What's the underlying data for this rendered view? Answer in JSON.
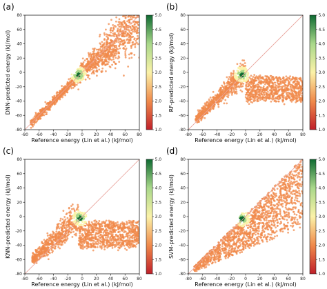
{
  "chart_data": [
    {
      "panel_label": "(a)",
      "type": "scatter",
      "xlabel": "Reference energy (Lin et al.) (kJ/mol)",
      "ylabel": "DNN-predicted energy (kJ/mol)",
      "xlim": [
        -80,
        80
      ],
      "ylim": [
        -80,
        80
      ],
      "xticks": [
        "-80",
        "-60",
        "-40",
        "-20",
        "0",
        "20",
        "40",
        "60",
        "80"
      ],
      "yticks": [
        "-80",
        "-60",
        "-40",
        "-20",
        "0",
        "20",
        "40",
        "60",
        "80"
      ],
      "colorbar": {
        "range": [
          1.0,
          5.0
        ],
        "ticks": [
          "1.0",
          "1.5",
          "2.0",
          "2.5",
          "3.0",
          "3.5",
          "4.0",
          "4.5",
          "5.0"
        ]
      },
      "diagonal_reference": true,
      "pattern": "tight band along y = x, widening at high energy",
      "density_peak": [
        -5,
        -3
      ]
    },
    {
      "panel_label": "(b)",
      "type": "scatter",
      "xlabel": "Reference energy (Lin et al.) (kJ/mol)",
      "ylabel": "RF-predicted energy (kJ/mol)",
      "xlim": [
        -80,
        80
      ],
      "ylim": [
        -80,
        80
      ],
      "xticks": [
        "-80",
        "-60",
        "-40",
        "-20",
        "0",
        "20",
        "40",
        "60",
        "80"
      ],
      "yticks": [
        "-80",
        "-60",
        "-40",
        "-20",
        "0",
        "20",
        "40",
        "60",
        "80"
      ],
      "colorbar": {
        "range": [
          1.0,
          5.0
        ],
        "ticks": [
          "1.0",
          "1.5",
          "2.0",
          "2.5",
          "3.0",
          "3.5",
          "4.0",
          "4.5",
          "5.0"
        ]
      },
      "diagonal_reference": true,
      "pattern": "predictions saturate near -20 for reference energies above 0",
      "density_peak": [
        -5,
        -3
      ]
    },
    {
      "panel_label": "(c)",
      "type": "scatter",
      "xlabel": "Reference energy (Lin et al.) (kJ/mol)",
      "ylabel": "KNN-predicted energy (kJ/mol)",
      "xlim": [
        -80,
        80
      ],
      "ylim": [
        -80,
        80
      ],
      "xticks": [
        "-80",
        "-60",
        "-40",
        "-20",
        "0",
        "20",
        "40",
        "60",
        "80"
      ],
      "yticks": [
        "-80",
        "-60",
        "-40",
        "-20",
        "0",
        "20",
        "40",
        "60",
        "80"
      ],
      "colorbar": {
        "range": [
          1.0,
          5.0
        ],
        "ticks": [
          "1.0",
          "1.5",
          "2.0",
          "2.5",
          "3.0",
          "3.5",
          "4.0",
          "4.5",
          "5.0"
        ]
      },
      "diagonal_reference": true,
      "pattern": "predictions saturate near -25 for reference energies above 0",
      "density_peak": [
        -3,
        -2
      ]
    },
    {
      "panel_label": "(d)",
      "type": "scatter",
      "xlabel": "Reference energy (Lin et al.) (kJ/mol)",
      "ylabel": "SVM-predicted energy (kJ/mol)",
      "xlim": [
        -80,
        80
      ],
      "ylim": [
        -80,
        80
      ],
      "xticks": [
        "-80",
        "-60",
        "-40",
        "-20",
        "0",
        "20",
        "40",
        "60",
        "80"
      ],
      "yticks": [
        "-80",
        "-60",
        "-40",
        "-20",
        "0",
        "20",
        "40",
        "60",
        "80"
      ],
      "colorbar": {
        "range": [
          1.0,
          5.0
        ],
        "ticks": [
          "1.0",
          "1.5",
          "2.0",
          "2.5",
          "3.0",
          "3.5",
          "4.0",
          "4.5",
          "5.0"
        ]
      },
      "diagonal_reference": true,
      "pattern": "wedge: follows y = x at the top edge, lower edge rises slowly",
      "density_peak": [
        -5,
        -3
      ]
    }
  ],
  "colors": {
    "low": "#c0202a",
    "mid_low": "#f08a4b",
    "mid": "#fbf2a8",
    "mid_high": "#a9d88a",
    "high": "#0f6b32",
    "diagonal": "#e8a29a"
  }
}
